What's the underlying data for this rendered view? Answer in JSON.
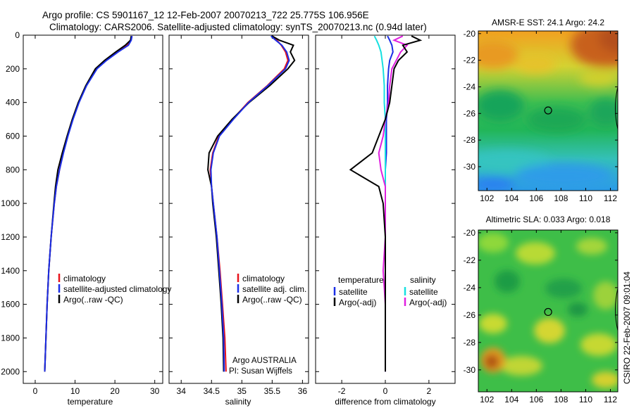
{
  "title": {
    "line1": "Argo profile: CS 5901167_12 12-Feb-2007 20070213_722 25.775S 106.956E",
    "line2": "Climatology: CARS2006. Satellite-adjusted climatology: synTS_20070213.nc (0.94d later)"
  },
  "side_label": "CSIRO 22-Feb-2007 09:01:04",
  "colors": {
    "climatology": "#e8141c",
    "satellite": "#1b2ee6",
    "argo": "#000000",
    "sal_satellite": "#16e0e0",
    "sal_argo": "#e020e0",
    "background": "#ffffff",
    "axis": "#000000"
  },
  "chart_data": [
    {
      "type": "line",
      "xlabel": "temperature",
      "xlim": [
        -3,
        32
      ],
      "ylim": [
        2070,
        0
      ],
      "xticks": [
        "0",
        "10",
        "20",
        "30"
      ],
      "yticks": [
        "0",
        "200",
        "400",
        "600",
        "800",
        "1000",
        "1200",
        "1400",
        "1600",
        "1800",
        "2000"
      ],
      "depth": [
        5,
        30,
        60,
        100,
        150,
        200,
        300,
        400,
        500,
        600,
        700,
        800,
        900,
        1000,
        1200,
        1400,
        1600,
        1800,
        2000
      ],
      "legend": [
        "climatology",
        "satellite-adjusted climatology",
        "Argo(..raw -QC)"
      ],
      "series": [
        {
          "name": "climatology",
          "values": [
            24.2,
            24.0,
            23.1,
            20.5,
            17.6,
            15.3,
            12.8,
            10.9,
            9.4,
            8.1,
            7.0,
            6.1,
            5.3,
            4.8,
            4.0,
            3.4,
            3.0,
            2.7,
            2.4
          ]
        },
        {
          "name": "satellite-adjusted climatology",
          "values": [
            24.3,
            24.1,
            23.4,
            20.8,
            17.9,
            15.5,
            12.9,
            11.0,
            9.5,
            8.2,
            7.1,
            6.1,
            5.3,
            4.8,
            4.0,
            3.4,
            3.0,
            2.7,
            2.4
          ]
        },
        {
          "name": "Argo(..raw -QC)",
          "values": [
            24.1,
            23.9,
            22.6,
            20.2,
            17.4,
            15.1,
            12.7,
            10.8,
            9.3,
            8.0,
            6.8,
            5.7,
            5.1,
            4.7,
            4.0,
            3.4,
            3.0,
            2.7,
            2.4
          ]
        }
      ],
      "annotations": []
    },
    {
      "type": "line",
      "xlabel": "salinity",
      "xlim": [
        33.8,
        36.1
      ],
      "ylim": [
        2070,
        0
      ],
      "xticks": [
        "34",
        "34.5",
        "35",
        "35.5",
        "36"
      ],
      "yticks": [],
      "depth": [
        5,
        30,
        60,
        100,
        150,
        200,
        300,
        400,
        500,
        600,
        700,
        800,
        900,
        1000,
        1200,
        1400,
        1600,
        1800,
        2000
      ],
      "legend": [
        "climatology",
        "satellite adj. clim.",
        "Argo(..raw -QC)"
      ],
      "series": [
        {
          "name": "climatology",
          "values": [
            35.5,
            35.58,
            35.65,
            35.72,
            35.76,
            35.7,
            35.42,
            35.1,
            34.85,
            34.62,
            34.52,
            34.48,
            34.5,
            34.53,
            34.59,
            34.64,
            34.68,
            34.72,
            34.74
          ]
        },
        {
          "name": "satellite adj. clim.",
          "values": [
            35.48,
            35.56,
            35.66,
            35.74,
            35.78,
            35.72,
            35.43,
            35.11,
            34.86,
            34.63,
            34.53,
            34.49,
            34.5,
            34.53,
            34.59,
            34.63,
            34.67,
            34.7,
            34.71
          ]
        },
        {
          "name": "Argo(..raw -QC)",
          "values": [
            35.5,
            35.62,
            35.85,
            35.8,
            35.87,
            35.76,
            35.46,
            35.12,
            34.84,
            34.6,
            34.46,
            34.44,
            34.5,
            34.52,
            34.58,
            34.62,
            34.66,
            34.69,
            34.7
          ]
        }
      ],
      "annotations": [
        "Argo AUSTRALIA",
        "PI: Susan Wijffels"
      ]
    },
    {
      "type": "line",
      "xlabel": "difference from climatology",
      "xlim": [
        -3.2,
        3.2
      ],
      "ylim": [
        2070,
        0
      ],
      "xticks": [
        "-2",
        "0",
        "2"
      ],
      "yticks": [],
      "depth": [
        5,
        30,
        60,
        100,
        150,
        200,
        300,
        400,
        500,
        600,
        700,
        800,
        900,
        1000,
        1200,
        1400,
        1600,
        1800,
        2000
      ],
      "legend_temperature": {
        "heading": "temperature",
        "entries": [
          "satellite",
          "Argo(-adj)"
        ]
      },
      "legend_salinity": {
        "heading": "salinity",
        "entries": [
          "satellite",
          "Argo(-adj)"
        ]
      },
      "series": [
        {
          "name": "temperature satellite",
          "values": [
            0.1,
            0.2,
            0.3,
            0.35,
            0.2,
            0.15,
            0.1,
            0.1,
            0.05,
            0.05,
            0.05,
            0.0,
            0.0,
            0.0,
            0.0,
            0.0,
            0.0,
            0.0,
            0.0
          ]
        },
        {
          "name": "temperature Argo(-adj)",
          "values": [
            1.2,
            1.6,
            0.8,
            1.0,
            0.6,
            0.4,
            0.3,
            0.2,
            0.0,
            -0.3,
            -0.6,
            -1.6,
            -0.3,
            -0.1,
            0.0,
            0.0,
            0.0,
            0.0,
            0.0
          ]
        },
        {
          "name": "salinity satellite",
          "values": [
            -0.5,
            -0.4,
            -0.3,
            -0.2,
            -0.15,
            -0.1,
            -0.05,
            -0.05,
            0.0,
            0.0,
            0.0,
            0.0,
            0.0,
            0.0,
            0.0,
            0.0,
            0.0,
            0.0,
            0.0
          ]
        },
        {
          "name": "salinity Argo(-adj)",
          "values": [
            0.8,
            0.4,
            1.0,
            0.7,
            0.5,
            0.3,
            0.2,
            0.15,
            0.0,
            -0.1,
            -0.3,
            -0.2,
            0.0,
            0.0,
            0.0,
            -0.1,
            0.0,
            0.0,
            0.0
          ]
        }
      ],
      "annotations": []
    },
    {
      "type": "heatmap",
      "title": "AMSR-E SST: 24.1 Argo: 24.2",
      "xlim": [
        101.3,
        112.6
      ],
      "ylim": [
        -31.8,
        -19.8
      ],
      "xticks": [
        "102",
        "104",
        "106",
        "108",
        "110",
        "112"
      ],
      "yticks": [
        "-20",
        "-22",
        "-24",
        "-26",
        "-28",
        "-30"
      ],
      "marker": {
        "lon": 106.956,
        "lat": -25.775
      }
    },
    {
      "type": "heatmap",
      "title": "Altimetric SLA: 0.033 Argo: 0.018",
      "xlim": [
        101.3,
        112.6
      ],
      "ylim": [
        -31.6,
        -19.8
      ],
      "xticks": [
        "102",
        "104",
        "106",
        "108",
        "110",
        "112"
      ],
      "yticks": [
        "-20",
        "-22",
        "-24",
        "-26",
        "-28",
        "-30"
      ],
      "marker": {
        "lon": 106.956,
        "lat": -25.775
      }
    }
  ]
}
